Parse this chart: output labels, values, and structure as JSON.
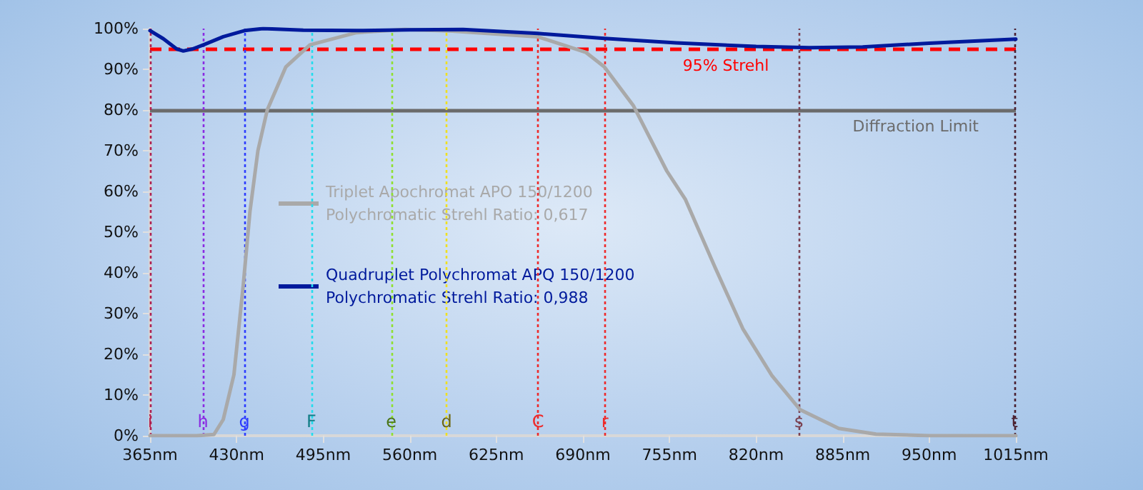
{
  "chart_data": {
    "type": "line",
    "x": [
      365,
      375,
      385,
      390,
      397,
      405,
      420,
      436,
      450,
      480,
      520,
      560,
      600,
      656,
      706,
      760,
      820,
      860,
      900,
      950,
      1015
    ],
    "series": [
      {
        "name": "Triplet Apochromat APO 150/1200\nPolychromatic Strehl Ratio: 0,617",
        "color": "#a9a9a9",
        "x": [
          365,
          400,
          413,
          420,
          428,
          435,
          440,
          446,
          453,
          467,
          485,
          520,
          556,
          592,
          656,
          692,
          706,
          728,
          753,
          767,
          789,
          810,
          832,
          853,
          882,
          910,
          950,
          1015
        ],
        "values": [
          0,
          0,
          0.3,
          4,
          15,
          37,
          55,
          70,
          80,
          90.6,
          96,
          99,
          99.8,
          99.4,
          98,
          94.2,
          90.6,
          81,
          65,
          58,
          41.5,
          26.3,
          14.7,
          6.4,
          1.8,
          0.4,
          0,
          0
        ]
      },
      {
        "name": "Quadruplet Polychromat APQ 150/1200\nPolychromatic Strehl Ratio: 0,988",
        "color": "#001a9c",
        "values": [
          99.5,
          97.5,
          95,
          94.5,
          95,
          96,
          98,
          99.5,
          100,
          99.6,
          99.5,
          99.7,
          99.8,
          98.8,
          97.6,
          96.5,
          95.6,
          95.3,
          95.5,
          96.4,
          97.4
        ]
      }
    ],
    "xlim": [
      365,
      1015
    ],
    "xticks": [
      {
        "value": 365,
        "label": "365nm"
      },
      {
        "value": 430,
        "label": "430nm"
      },
      {
        "value": 495,
        "label": "495nm"
      },
      {
        "value": 560,
        "label": "560nm"
      },
      {
        "value": 625,
        "label": "625nm"
      },
      {
        "value": 690,
        "label": "690nm"
      },
      {
        "value": 755,
        "label": "755nm"
      },
      {
        "value": 820,
        "label": "820nm"
      },
      {
        "value": 885,
        "label": "885nm"
      },
      {
        "value": 950,
        "label": "950nm"
      },
      {
        "value": 1015,
        "label": "1015nm"
      }
    ],
    "ylim": [
      0,
      100
    ],
    "yticks": [
      {
        "value": 0,
        "label": "0%"
      },
      {
        "value": 10,
        "label": "10%"
      },
      {
        "value": 20,
        "label": "20%"
      },
      {
        "value": 30,
        "label": "30%"
      },
      {
        "value": 40,
        "label": "40%"
      },
      {
        "value": 50,
        "label": "50%"
      },
      {
        "value": 60,
        "label": "60%"
      },
      {
        "value": 70,
        "label": "70%"
      },
      {
        "value": 80,
        "label": "80%"
      },
      {
        "value": 90,
        "label": "90%"
      },
      {
        "value": 100,
        "label": "100%"
      }
    ],
    "ref_lines": [
      {
        "axis": "y",
        "value": 95,
        "label": "95% Strehl",
        "color": "#ff0000",
        "line_style": "dashed"
      },
      {
        "axis": "y",
        "value": 80,
        "label": "Diffraction Limit",
        "color": "#6b6b6b",
        "line_style": "solid"
      },
      {
        "axis": "x",
        "value": 365,
        "label": "i",
        "color": "#b02050",
        "line_style": "dotted"
      },
      {
        "axis": "x",
        "value": 404.7,
        "label": "h",
        "color": "#8a2be2",
        "line_style": "dotted"
      },
      {
        "axis": "x",
        "value": 435.8,
        "label": "g",
        "color": "#2d3cff",
        "line_style": "dotted"
      },
      {
        "axis": "x",
        "value": 486.1,
        "label": "F",
        "color": "#22ddee",
        "line_style": "dotted"
      },
      {
        "axis": "x",
        "value": 546.1,
        "label": "e",
        "color": "#90e030",
        "line_style": "dotted"
      },
      {
        "axis": "x",
        "value": 587.6,
        "label": "d",
        "color": "#f0e020",
        "line_style": "dotted"
      },
      {
        "axis": "x",
        "value": 656.3,
        "label": "C",
        "color": "#ee2a2a",
        "line_style": "dotted"
      },
      {
        "axis": "x",
        "value": 706.5,
        "label": "r",
        "color": "#ee2a2a",
        "line_style": "dotted"
      },
      {
        "axis": "x",
        "value": 852.1,
        "label": "s",
        "color": "#7a4050",
        "line_style": "dotted"
      },
      {
        "axis": "x",
        "value": 1014,
        "label": "t",
        "color": "#4a2030",
        "line_style": "dotted"
      }
    ],
    "grid": false,
    "legend": "left",
    "marker": "none",
    "line_style": "solid"
  }
}
